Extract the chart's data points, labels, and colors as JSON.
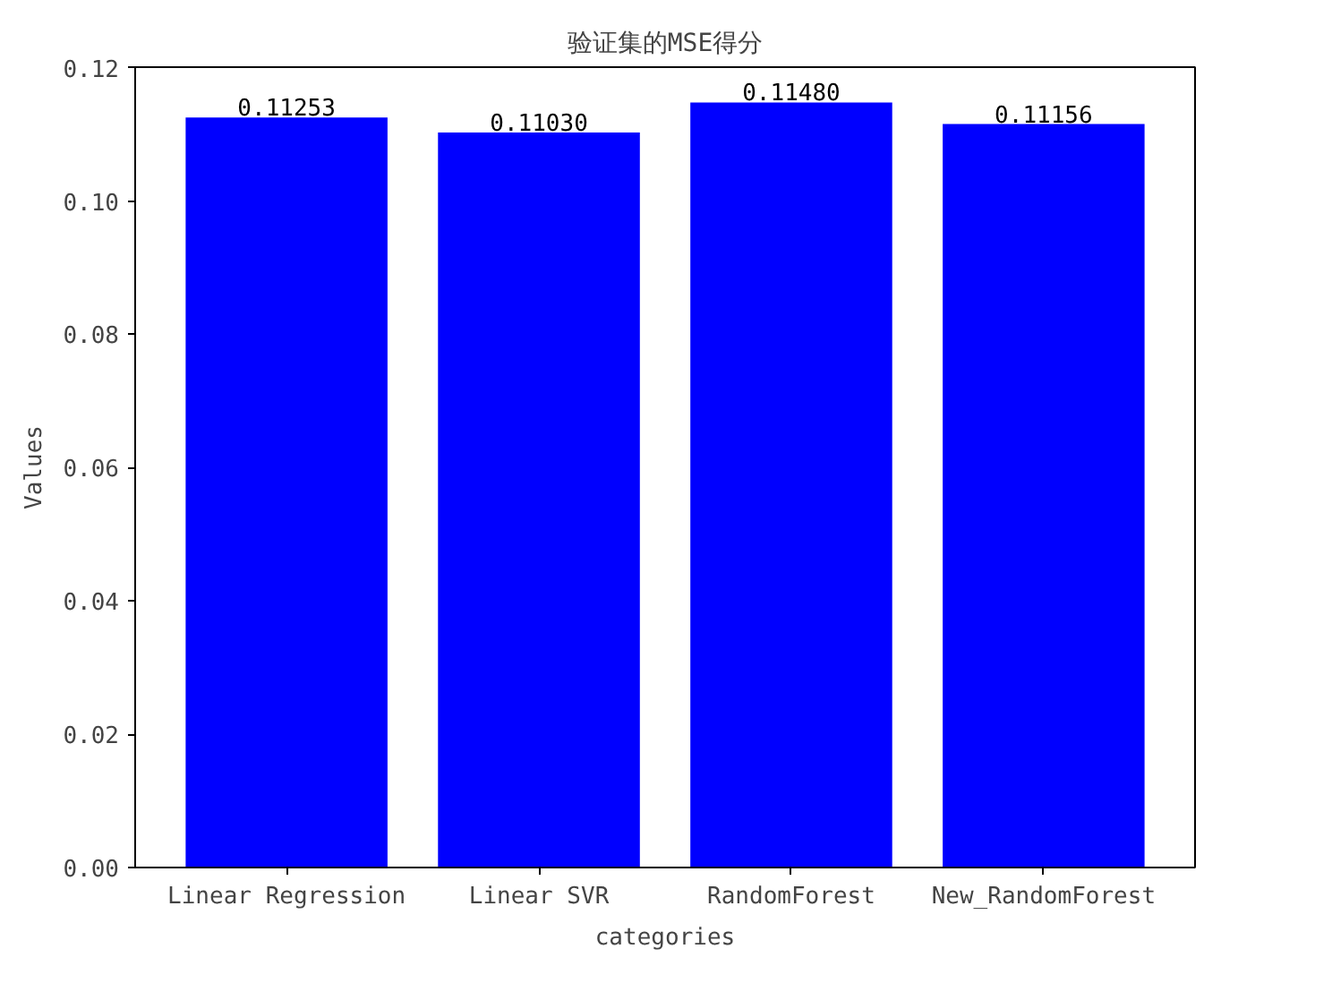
{
  "chart_data": {
    "type": "bar",
    "title": "验证集的MSE得分",
    "xlabel": "categories",
    "ylabel": "Values",
    "categories": [
      "Linear Regression",
      "Linear SVR",
      "RandomForest",
      "New_RandomForest"
    ],
    "values": [
      0.11253,
      0.1103,
      0.1148,
      0.11156
    ],
    "value_labels": [
      "0.11253",
      "0.11030",
      "0.11480",
      "0.11156"
    ],
    "color": "#0000ff",
    "ylim": [
      0,
      0.1201
    ],
    "yticks": [
      {
        "value": 0,
        "label": "0.00"
      },
      {
        "value": 0.02,
        "label": "0.02"
      },
      {
        "value": 0.04,
        "label": "0.04"
      },
      {
        "value": 0.06,
        "label": "0.06"
      },
      {
        "value": 0.08,
        "label": "0.08"
      },
      {
        "value": 0.1,
        "label": "0.10"
      },
      {
        "value": 0.12,
        "label": "0.12"
      }
    ],
    "grid": false
  }
}
